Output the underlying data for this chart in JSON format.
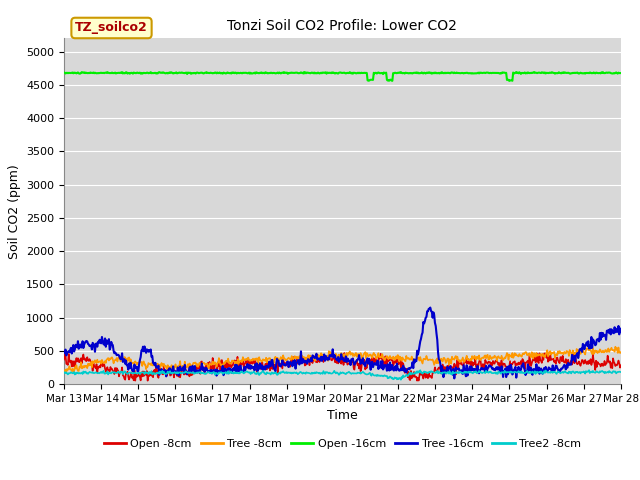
{
  "title": "Tonzi Soil CO2 Profile: Lower CO2",
  "xlabel": "Time",
  "ylabel": "Soil CO2 (ppm)",
  "ylim": [
    0,
    5200
  ],
  "yticks": [
    0,
    500,
    1000,
    1500,
    2000,
    2500,
    3000,
    3500,
    4000,
    4500,
    5000
  ],
  "background_color": "#d8d8d8",
  "legend_label": "TZ_soilco2",
  "legend_label_color": "#aa0000",
  "legend_box_facecolor": "#ffffcc",
  "legend_box_edgecolor": "#cc9900",
  "series_labels": [
    "Open -8cm",
    "Tree -8cm",
    "Open -16cm",
    "Tree -16cm",
    "Tree2 -8cm"
  ],
  "series_colors": [
    "#dd0000",
    "#ff9900",
    "#00ee00",
    "#0000cc",
    "#00cccc"
  ],
  "series_linewidths": [
    1.2,
    1.2,
    1.5,
    1.5,
    1.2
  ],
  "n_points": 720,
  "x_start": 13,
  "x_end": 28,
  "xtick_positions": [
    13,
    14,
    15,
    16,
    17,
    18,
    19,
    20,
    21,
    22,
    23,
    24,
    25,
    26,
    27,
    28
  ],
  "xtick_labels": [
    "Mar 13",
    "Mar 14",
    "Mar 15",
    "Mar 16",
    "Mar 17",
    "Mar 18",
    "Mar 19",
    "Mar 20",
    "Mar 21",
    "Mar 22",
    "Mar 23",
    "Mar 24",
    "Mar 25",
    "Mar 26",
    "Mar 27",
    "Mar 28"
  ]
}
